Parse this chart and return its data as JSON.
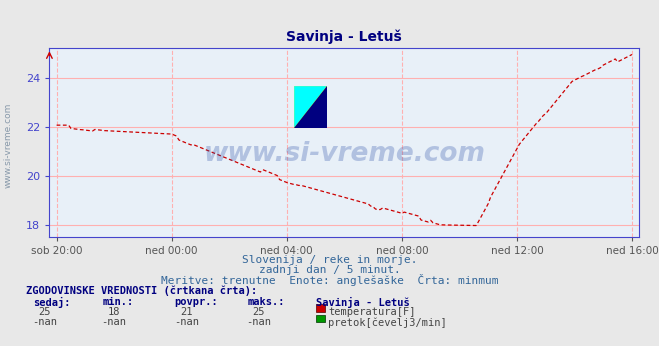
{
  "title": "Savinja - Letuš",
  "title_color": "#000080",
  "bg_color": "#e8e8e8",
  "plot_bg_color": "#e8f0f8",
  "grid_color_h": "#ffb0b0",
  "grid_color_v": "#ffb0b0",
  "axis_color": "#4444cc",
  "line_color": "#cc0000",
  "x_tick_labels": [
    "sob 20:00",
    "ned 00:00",
    "ned 04:00",
    "ned 08:00",
    "ned 12:00",
    "ned 16:00"
  ],
  "x_tick_positions": [
    0,
    48,
    96,
    144,
    192,
    240
  ],
  "ylim": [
    17.5,
    25.2
  ],
  "yticks": [
    18,
    20,
    22,
    24
  ],
  "subtitle1": "Slovenija / reke in morje.",
  "subtitle2": "zadnji dan / 5 minut.",
  "subtitle3": "Meritve: trenutne  Enote: anglešaške  Črta: minmum",
  "footer_title": "ZGODOVINSKE VREDNOSTI (črtkana črta):",
  "col_headers": [
    "sedaj:",
    "min.:",
    "povpr.:",
    "maks.:",
    "Savinja - Letuš"
  ],
  "row1_vals": [
    "25",
    "18",
    "21",
    "25"
  ],
  "row1_label": "temperatura[F]",
  "row1_color": "#cc0000",
  "row2_vals": [
    "-nan",
    "-nan",
    "-nan",
    "-nan"
  ],
  "row2_label": "pretok[čevelj3/min]",
  "row2_color": "#009900",
  "watermark": "www.si-vreme.com",
  "watermark_color": "#3355aa",
  "side_label": "www.si-vreme.com"
}
